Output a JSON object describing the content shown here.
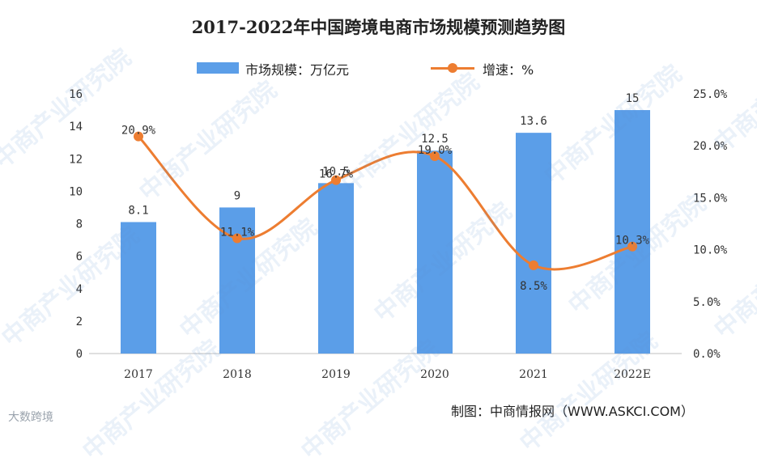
{
  "title": "2017-2022年中国跨境电商市场规模预测趋势图",
  "legend": {
    "bar_label": "市场规模：万亿元",
    "line_label": "增速：%"
  },
  "source": "制图：中商情报网（WWW.ASKCI.COM）",
  "footer_logo": "大数跨境",
  "watermark_text": "中商产业研究院",
  "colors": {
    "bar": "#5b9ee8",
    "line": "#ed7d31"
  },
  "chart_data": {
    "type": "bar+line",
    "categories": [
      "2017",
      "2018",
      "2019",
      "2020",
      "2021",
      "2022E"
    ],
    "series": [
      {
        "name": "市场规模：万亿元",
        "type": "bar",
        "axis": "left",
        "values": [
          8.1,
          9,
          10.5,
          12.5,
          13.6,
          15
        ],
        "labels": [
          "8.1",
          "9",
          "10.5",
          "12.5",
          "13.6",
          "15"
        ]
      },
      {
        "name": "增速：%",
        "type": "line",
        "axis": "right",
        "values": [
          20.9,
          11.1,
          16.7,
          19.0,
          8.5,
          10.3
        ],
        "labels": [
          "20.9%",
          "11.1%",
          "16.7%",
          "19.0%",
          "8.5%",
          "10.3%"
        ]
      }
    ],
    "y_left": {
      "min": 0,
      "max": 16,
      "ticks": [
        "0",
        "2",
        "4",
        "6",
        "8",
        "10",
        "12",
        "14",
        "16"
      ]
    },
    "y_right": {
      "min": 0,
      "max": 25,
      "ticks": [
        "0.0%",
        "5.0%",
        "10.0%",
        "15.0%",
        "20.0%",
        "25.0%"
      ]
    },
    "grid": false,
    "legend_position": "top"
  }
}
